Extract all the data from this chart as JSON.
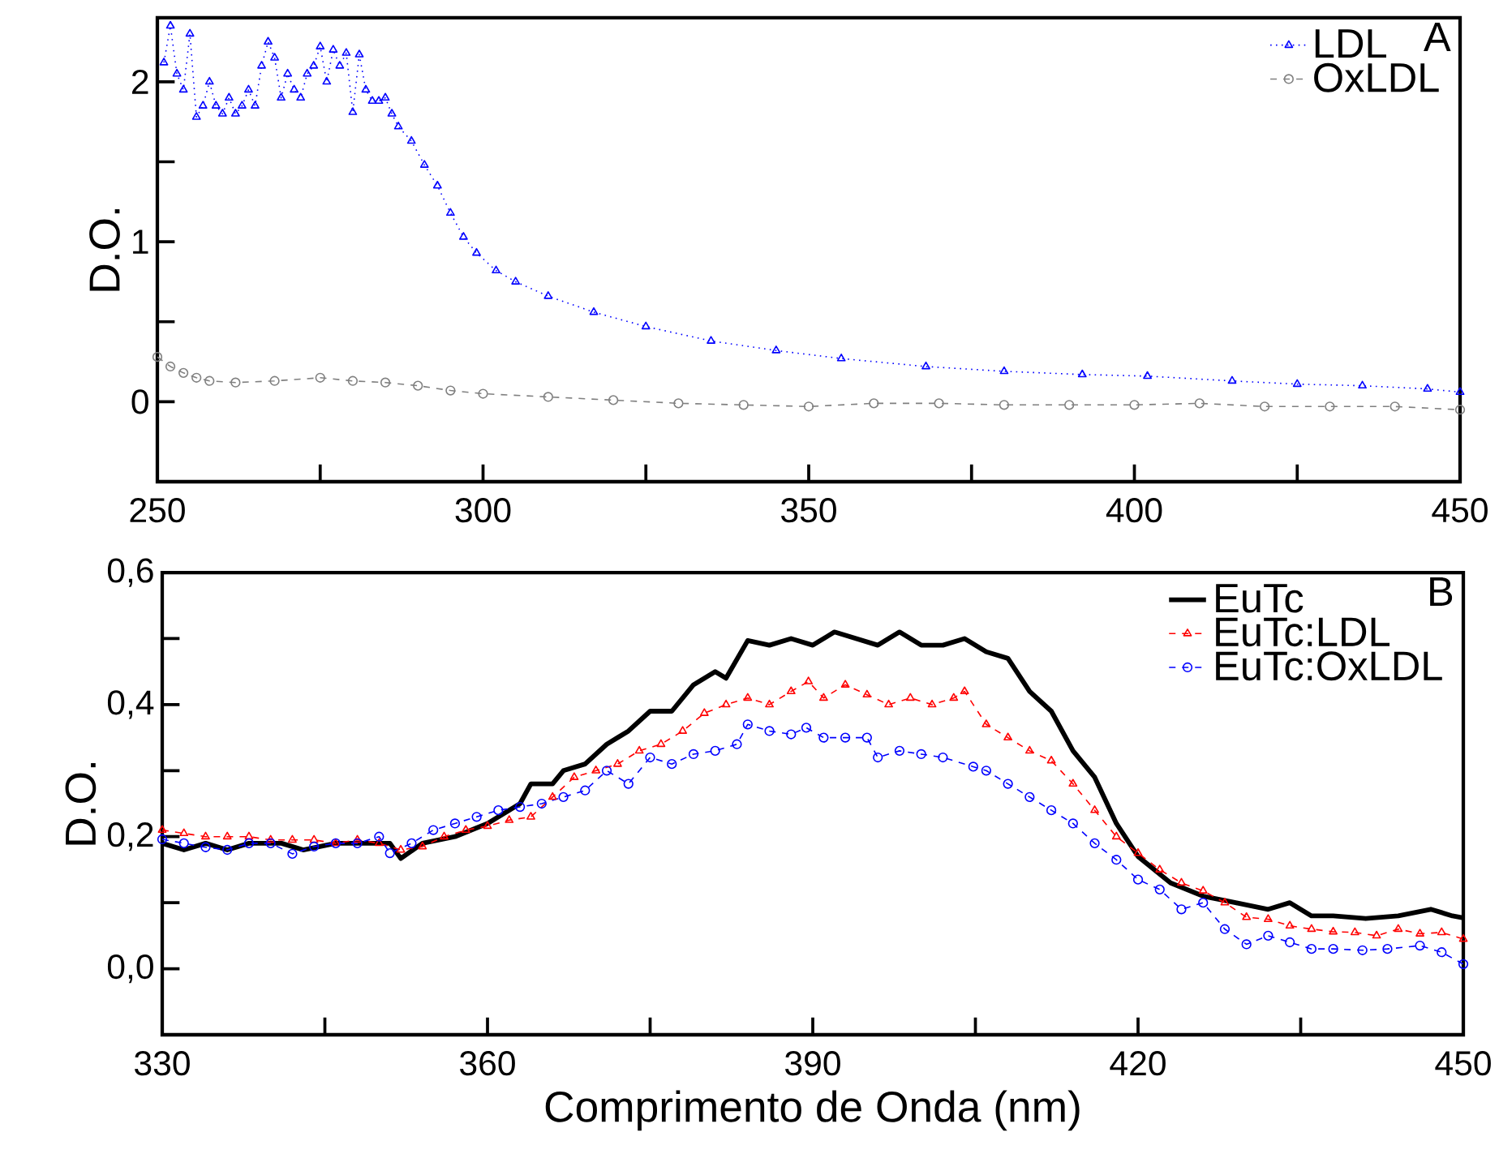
{
  "chart_data": [
    {
      "type": "line",
      "ylabel": "D.O.",
      "xlim": [
        250,
        450
      ],
      "ylim": [
        -0.5,
        2.4
      ],
      "xticks": [
        250,
        {
          "value": 275,
          "label": null
        },
        300,
        {
          "value": 325,
          "label": null
        },
        350,
        {
          "value": 375,
          "label": null
        },
        400,
        {
          "value": 425,
          "label": null
        },
        450
      ],
      "yticks": [
        0,
        {
          "value": 0.5,
          "label": null
        },
        1,
        {
          "value": 1.5,
          "label": null
        },
        2
      ],
      "legend": "top right",
      "annotations": [
        "A"
      ],
      "series": [
        {
          "name": "LDL",
          "color": "#0000ff",
          "marker": "triangle",
          "line_style": "dotted",
          "x": [
            251,
            252,
            253,
            254,
            255,
            256,
            257,
            258,
            259,
            260,
            261,
            262,
            263,
            264,
            265,
            266,
            267,
            268,
            269,
            270,
            271,
            272,
            273,
            274,
            275,
            276,
            277,
            278,
            279,
            280,
            281,
            282,
            283,
            284,
            285,
            286,
            287,
            289,
            291,
            293,
            295,
            297,
            299,
            302,
            305,
            310,
            317,
            325,
            335,
            345,
            355,
            368,
            380,
            392,
            402,
            415,
            425,
            435,
            445,
            450
          ],
          "values": [
            2.12,
            2.35,
            2.05,
            1.95,
            2.3,
            1.78,
            1.85,
            2.0,
            1.85,
            1.8,
            1.9,
            1.8,
            1.85,
            1.95,
            1.85,
            2.1,
            2.25,
            2.15,
            1.9,
            2.05,
            1.95,
            1.9,
            2.05,
            2.1,
            2.22,
            2.0,
            2.2,
            2.1,
            2.18,
            1.81,
            2.17,
            1.95,
            1.88,
            1.88,
            1.9,
            1.8,
            1.72,
            1.63,
            1.48,
            1.35,
            1.18,
            1.03,
            0.93,
            0.82,
            0.75,
            0.66,
            0.56,
            0.47,
            0.38,
            0.32,
            0.27,
            0.22,
            0.19,
            0.17,
            0.16,
            0.13,
            0.11,
            0.1,
            0.08,
            0.06
          ]
        },
        {
          "name": "OxLDL",
          "color": "#808080",
          "marker": "circle",
          "line_style": "dashed",
          "x": [
            250,
            252,
            254,
            256,
            258,
            262,
            268,
            275,
            280,
            285,
            290,
            295,
            300,
            310,
            320,
            330,
            340,
            350,
            360,
            370,
            380,
            390,
            400,
            410,
            420,
            430,
            440,
            450
          ],
          "values": [
            0.28,
            0.22,
            0.18,
            0.15,
            0.13,
            0.12,
            0.13,
            0.15,
            0.13,
            0.12,
            0.1,
            0.07,
            0.05,
            0.03,
            0.01,
            -0.01,
            -0.02,
            -0.03,
            -0.01,
            -0.01,
            -0.02,
            -0.02,
            -0.02,
            -0.01,
            -0.03,
            -0.03,
            -0.03,
            -0.05
          ]
        }
      ]
    },
    {
      "type": "line",
      "xlabel": "Comprimento de Onda (nm)",
      "ylabel": "D.O.",
      "xlim": [
        330,
        450
      ],
      "ylim": [
        -0.1,
        0.6
      ],
      "xticks": [
        330,
        {
          "value": 345,
          "label": null
        },
        360,
        {
          "value": 375,
          "label": null
        },
        390,
        {
          "value": 405,
          "label": null
        },
        420,
        {
          "value": 435,
          "label": null
        },
        450
      ],
      "yticks": [
        {
          "value": 0,
          "label": "0,0"
        },
        {
          "value": 0.1,
          "label": null
        },
        {
          "value": 0.2,
          "label": "0,2"
        },
        {
          "value": 0.3,
          "label": null
        },
        {
          "value": 0.4,
          "label": "0,4"
        },
        {
          "value": 0.5,
          "label": null
        },
        {
          "value": 0.6,
          "label": "0,6"
        }
      ],
      "legend": "top right",
      "annotations": [
        "B"
      ],
      "series": [
        {
          "name": "EuTc",
          "color": "#000000",
          "marker": "none",
          "line_style": "solid",
          "x": [
            330,
            332,
            334,
            336,
            338,
            341,
            343,
            346,
            349,
            351,
            352,
            354,
            357,
            360,
            363,
            364,
            366,
            367,
            369,
            371,
            373,
            375,
            377,
            379,
            381,
            382,
            384,
            386,
            388,
            390,
            392,
            394,
            396,
            398,
            400,
            402,
            404,
            406,
            408,
            410,
            412,
            414,
            416,
            418,
            420,
            423,
            426,
            429,
            432,
            434,
            436,
            438,
            441,
            444,
            447,
            449,
            450
          ],
          "values": [
            0.19,
            0.18,
            0.19,
            0.18,
            0.19,
            0.19,
            0.18,
            0.19,
            0.19,
            0.19,
            0.167,
            0.19,
            0.2,
            0.22,
            0.25,
            0.28,
            0.28,
            0.3,
            0.31,
            0.34,
            0.36,
            0.39,
            0.39,
            0.43,
            0.45,
            0.44,
            0.497,
            0.49,
            0.5,
            0.49,
            0.51,
            0.5,
            0.49,
            0.51,
            0.49,
            0.49,
            0.5,
            0.48,
            0.47,
            0.42,
            0.39,
            0.33,
            0.29,
            0.22,
            0.17,
            0.13,
            0.11,
            0.1,
            0.09,
            0.1,
            0.08,
            0.08,
            0.076,
            0.08,
            0.09,
            0.08,
            0.077
          ]
        },
        {
          "name": "EuTc:LDL",
          "color": "#ff0000",
          "marker": "triangle",
          "line_style": "dashed",
          "x": [
            330,
            332,
            334,
            336,
            338,
            340,
            342,
            344,
            346,
            348,
            350,
            352,
            354,
            356,
            358,
            360,
            362,
            364,
            366,
            368,
            370,
            372,
            374,
            376,
            378,
            380,
            382,
            384,
            386,
            388,
            389.6,
            391,
            393,
            395,
            397,
            399,
            401,
            403,
            404,
            406,
            408,
            410,
            412,
            414,
            416,
            418,
            420,
            422,
            424,
            426,
            428,
            430,
            432,
            434,
            436,
            438,
            440,
            442,
            444,
            446,
            448,
            450
          ],
          "values": [
            0.21,
            0.205,
            0.2,
            0.2,
            0.2,
            0.195,
            0.195,
            0.195,
            0.19,
            0.195,
            0.19,
            0.18,
            0.185,
            0.2,
            0.21,
            0.216,
            0.225,
            0.23,
            0.26,
            0.29,
            0.3,
            0.31,
            0.33,
            0.34,
            0.36,
            0.387,
            0.4,
            0.41,
            0.4,
            0.42,
            0.435,
            0.41,
            0.43,
            0.415,
            0.4,
            0.41,
            0.4,
            0.41,
            0.42,
            0.37,
            0.35,
            0.33,
            0.315,
            0.28,
            0.24,
            0.2,
            0.175,
            0.15,
            0.13,
            0.118,
            0.1,
            0.078,
            0.075,
            0.065,
            0.06,
            0.056,
            0.055,
            0.05,
            0.06,
            0.053,
            0.055,
            0.045
          ]
        },
        {
          "name": "EuTc:OxLDL",
          "color": "#0000ff",
          "marker": "circle",
          "line_style": "dashed",
          "x": [
            330,
            332,
            334,
            336,
            338,
            340,
            342,
            344,
            346,
            348,
            350,
            351,
            353,
            355,
            357,
            359,
            361,
            363,
            365,
            367,
            369,
            371,
            373,
            375,
            377,
            379,
            381,
            383,
            384,
            386,
            388,
            389.4,
            391,
            393,
            395,
            396,
            398,
            400,
            402,
            404.8,
            406,
            408,
            410,
            412,
            414,
            416,
            418,
            420,
            422,
            424,
            426,
            428,
            430,
            432,
            434,
            436,
            438,
            440.7,
            443,
            446,
            448,
            450
          ],
          "values": [
            0.196,
            0.19,
            0.184,
            0.18,
            0.19,
            0.19,
            0.174,
            0.185,
            0.19,
            0.19,
            0.2,
            0.175,
            0.19,
            0.21,
            0.22,
            0.23,
            0.24,
            0.245,
            0.25,
            0.26,
            0.27,
            0.3,
            0.28,
            0.32,
            0.31,
            0.325,
            0.33,
            0.34,
            0.37,
            0.36,
            0.355,
            0.365,
            0.35,
            0.35,
            0.35,
            0.32,
            0.33,
            0.325,
            0.32,
            0.306,
            0.3,
            0.28,
            0.26,
            0.24,
            0.22,
            0.19,
            0.165,
            0.135,
            0.12,
            0.09,
            0.1,
            0.06,
            0.037,
            0.05,
            0.04,
            0.03,
            0.03,
            0.028,
            0.03,
            0.035,
            0.025,
            0.007
          ]
        }
      ]
    }
  ]
}
